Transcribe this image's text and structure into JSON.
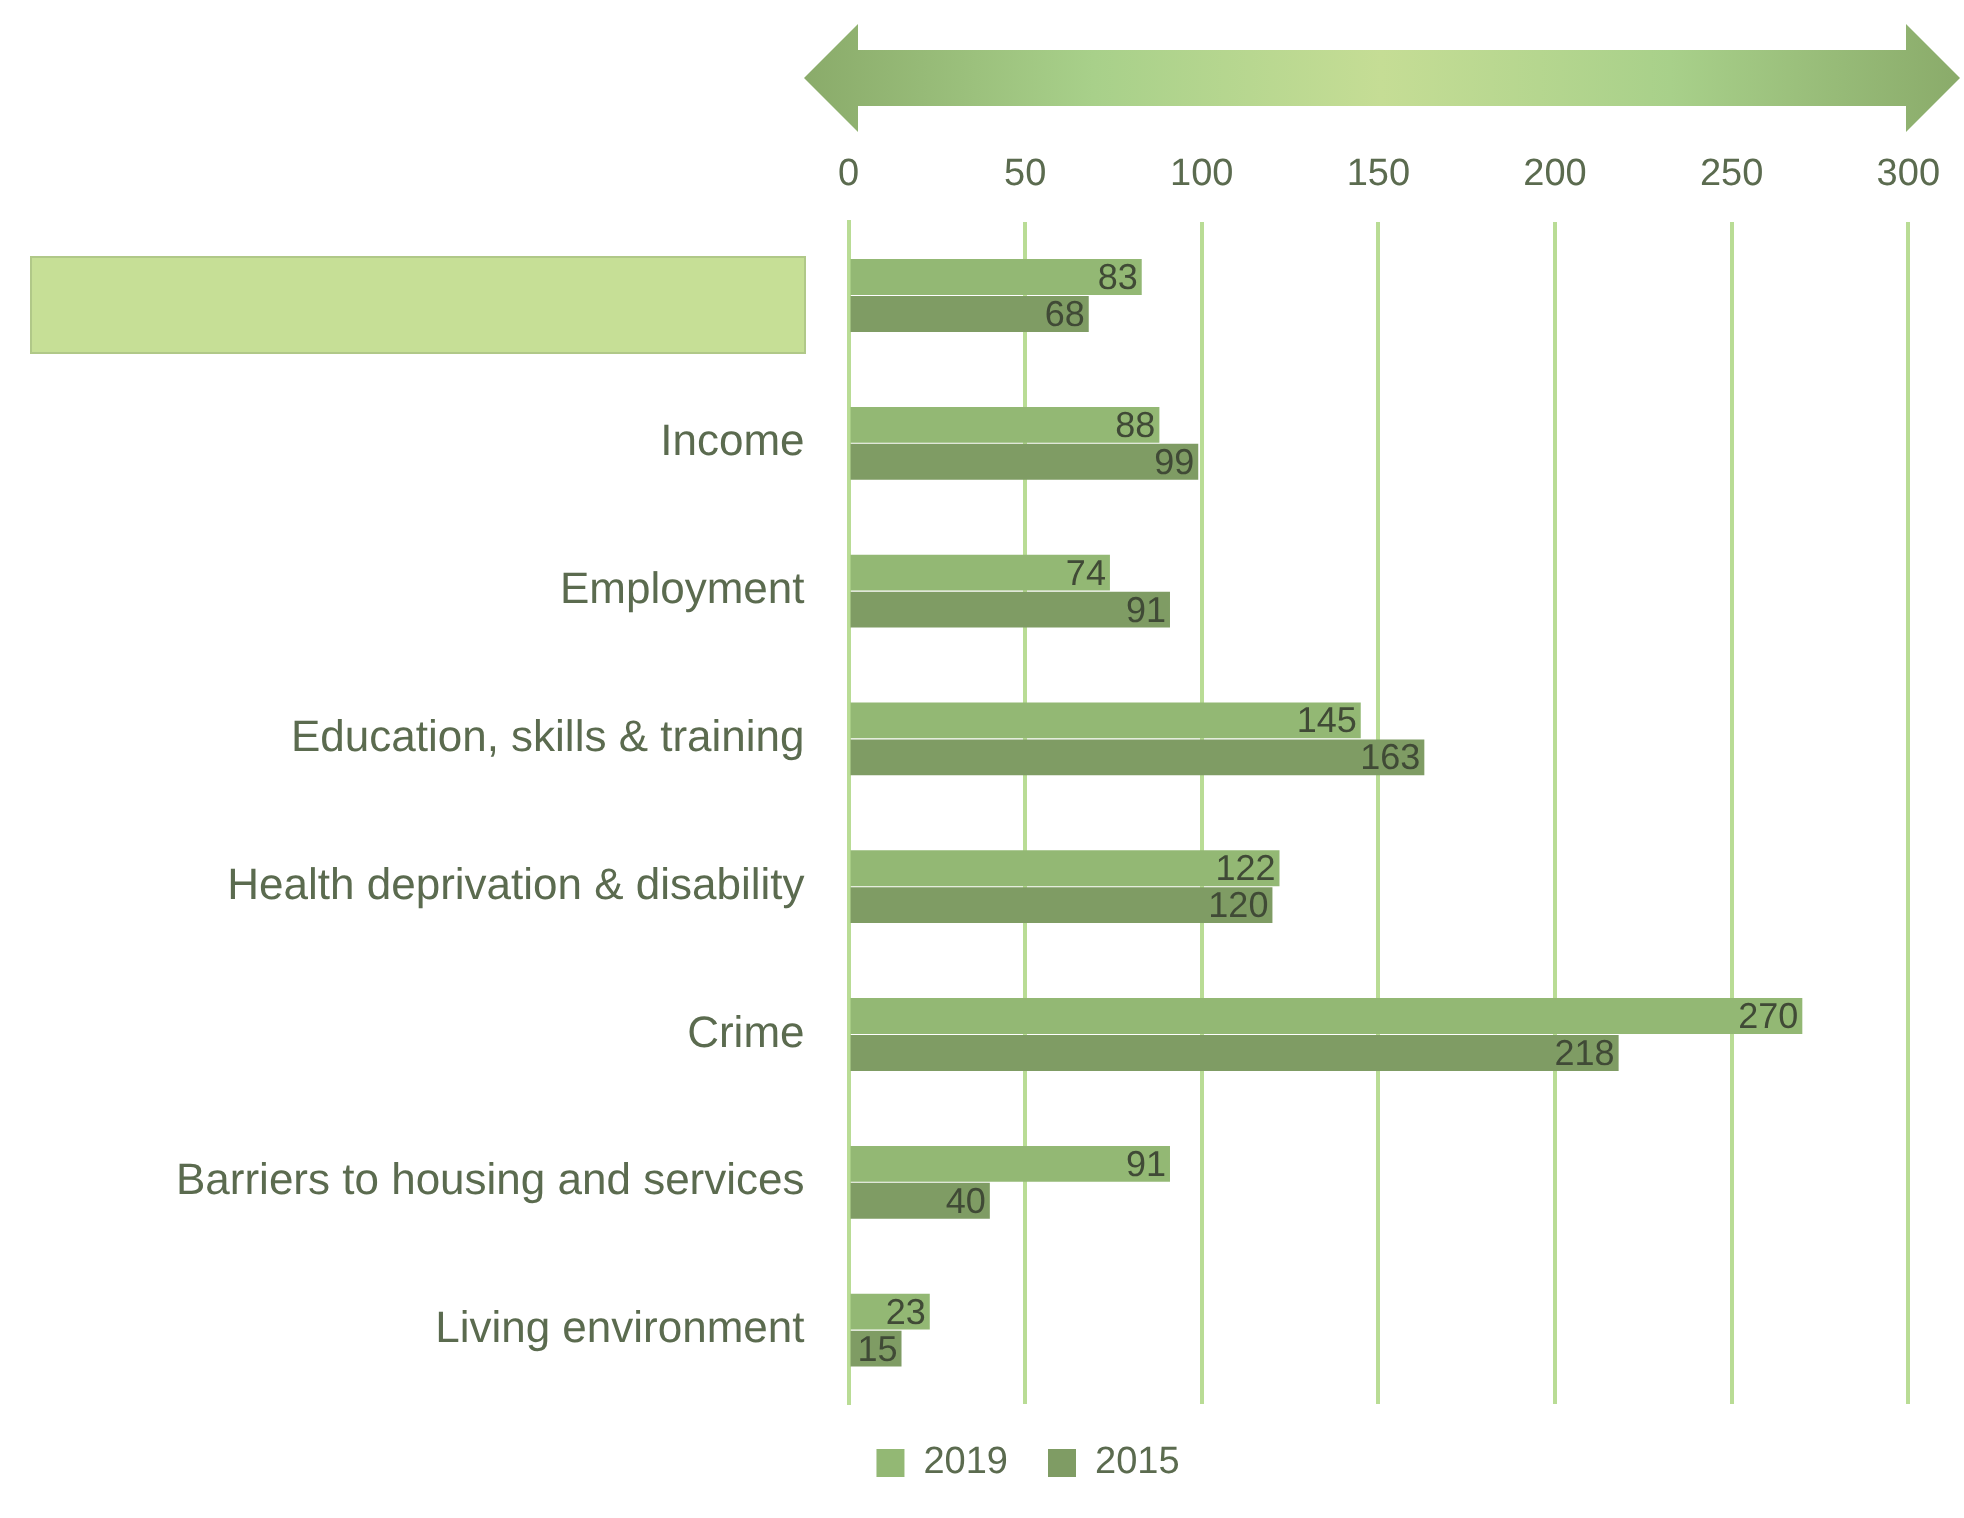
{
  "chart_data": {
    "type": "bar",
    "orientation": "horizontal",
    "categories": [
      null,
      "Income",
      "Employment",
      "Education, skills & training",
      "Health deprivation & disability",
      "Crime",
      "Barriers to housing and services",
      "Living environment"
    ],
    "series": [
      {
        "name": "2019",
        "color": "#93b874",
        "values": [
          83,
          88,
          74,
          145,
          122,
          270,
          91,
          23
        ]
      },
      {
        "name": "2015",
        "color": "#7f9c64",
        "values": [
          68,
          99,
          91,
          163,
          120,
          218,
          40,
          15
        ]
      }
    ],
    "xlim": [
      0,
      300
    ],
    "xticks": [
      0,
      50,
      100,
      150,
      200,
      250,
      300
    ],
    "grid": "x",
    "legend": "bottom",
    "data_labels": true
  }
}
